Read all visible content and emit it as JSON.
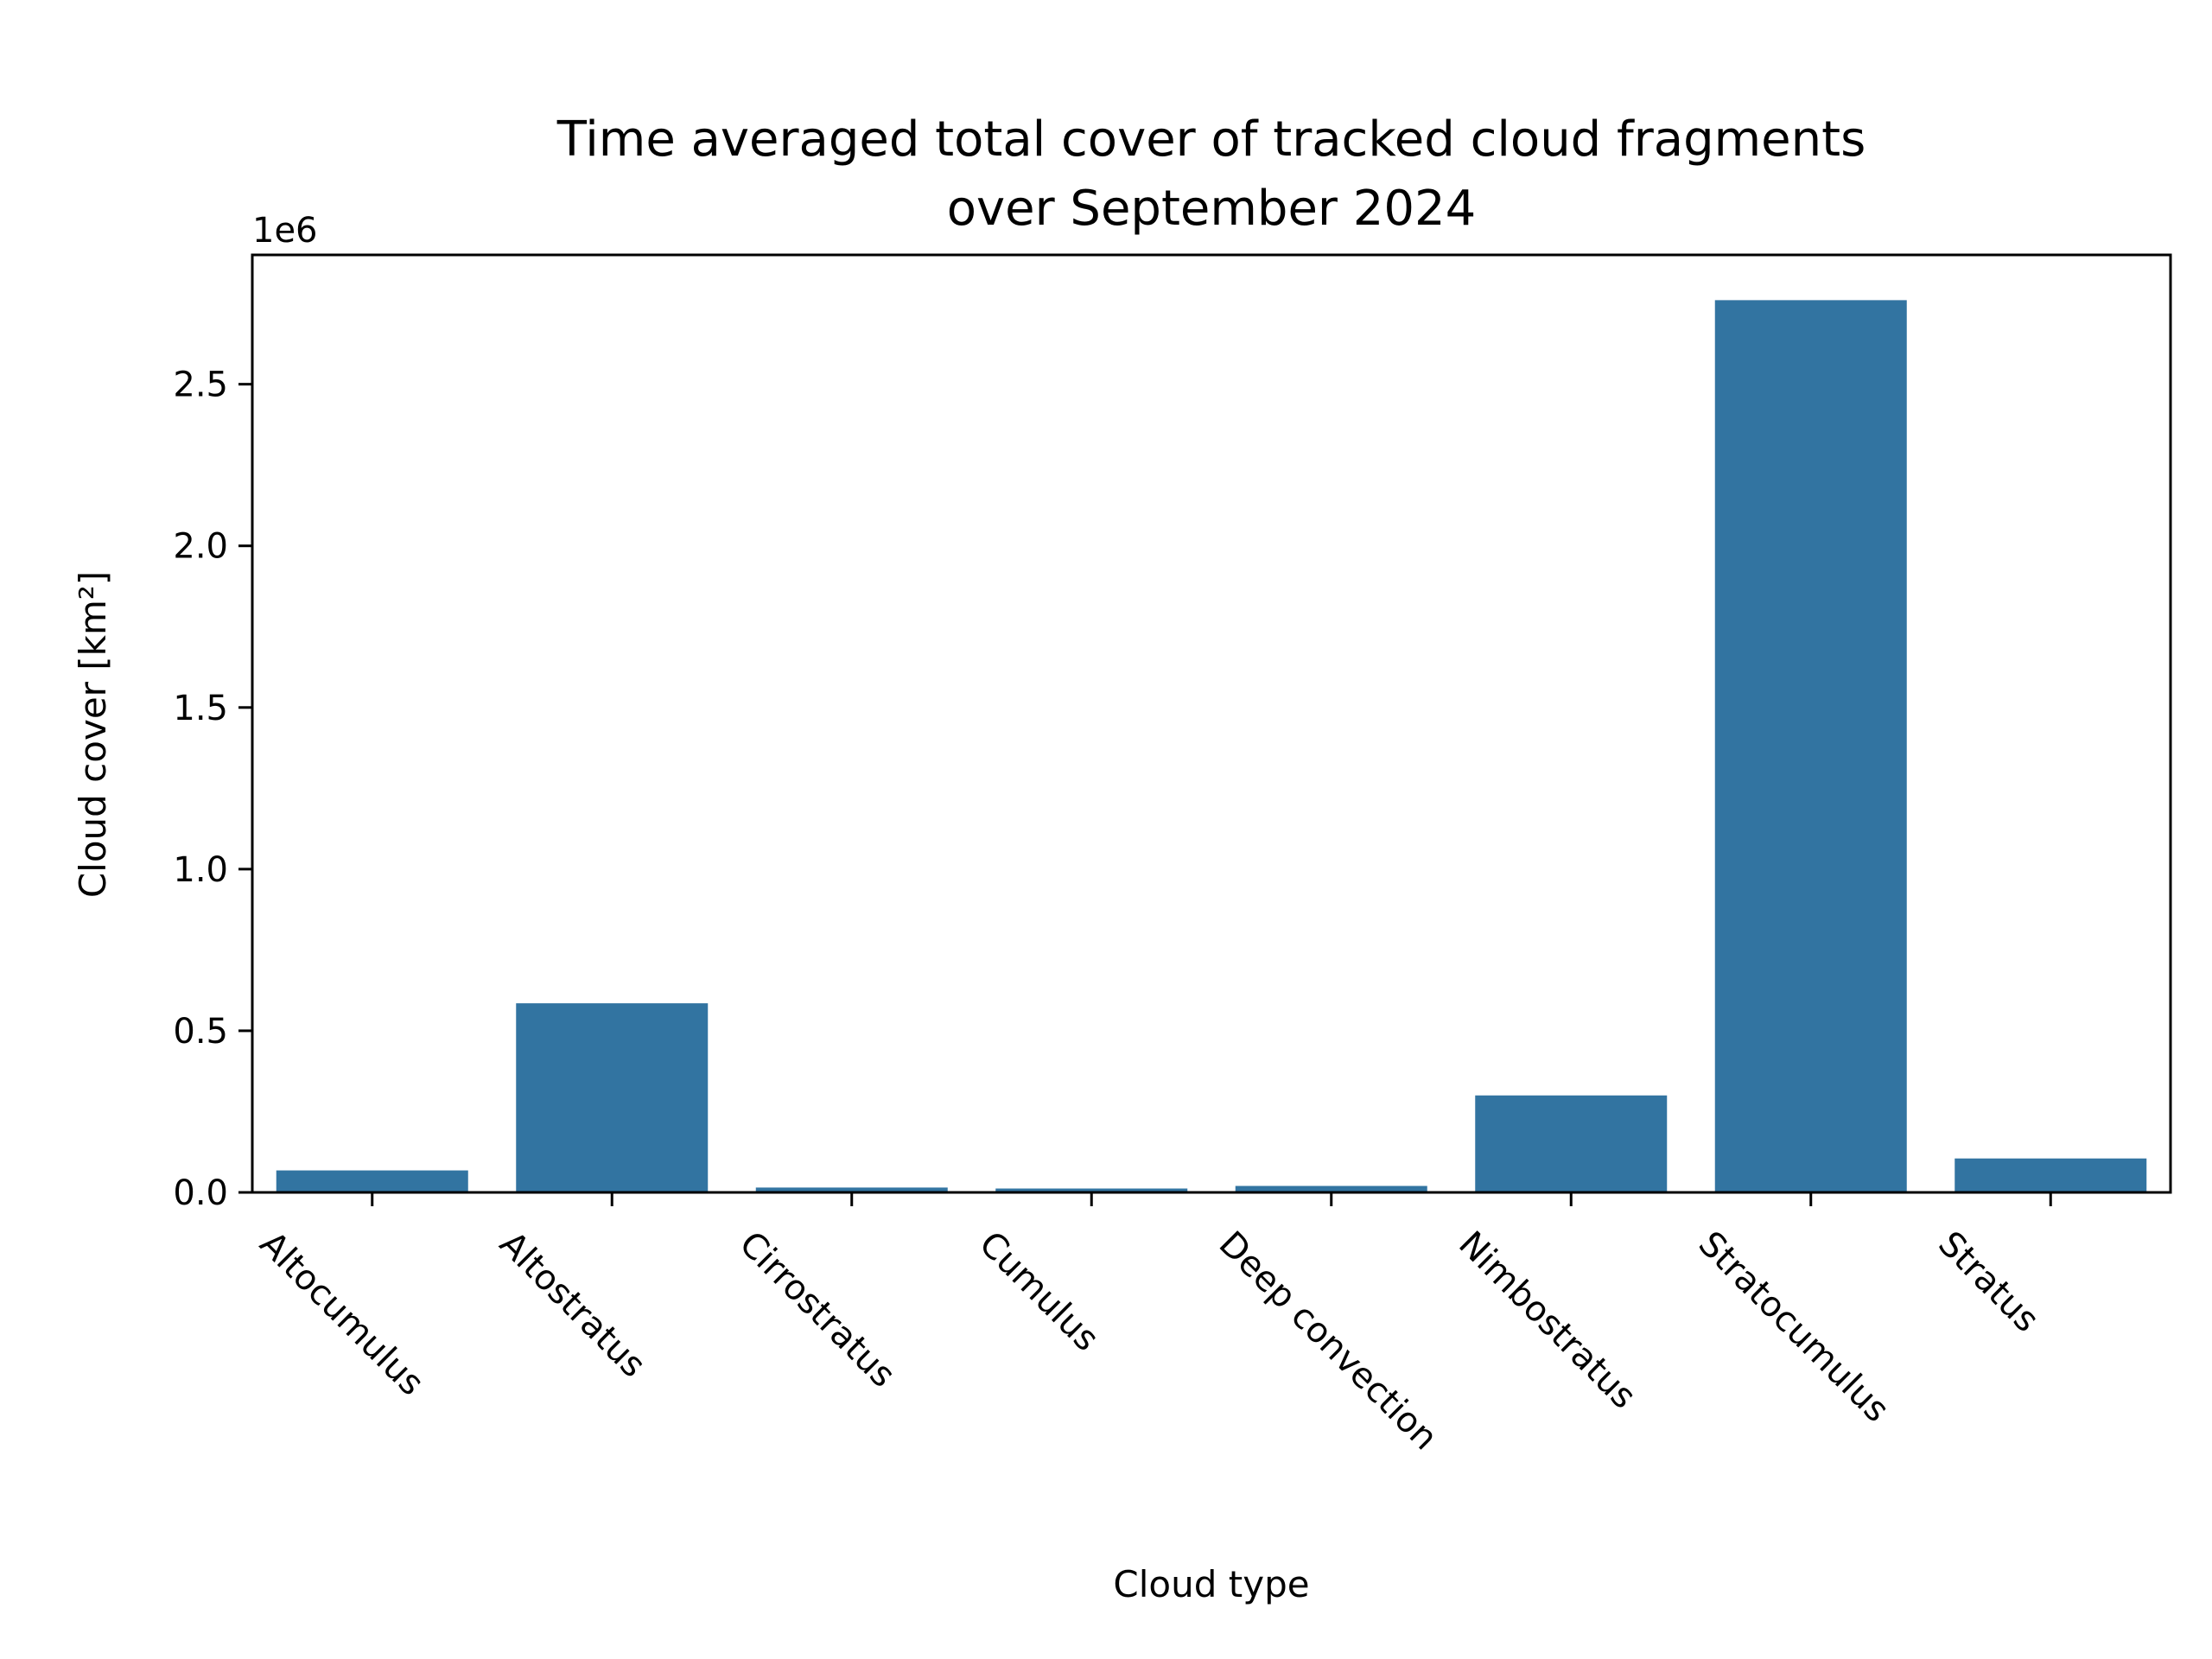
{
  "chart_data": {
    "type": "bar",
    "title_line1": "Time averaged total cover of tracked cloud fragments",
    "title_line2": "over September 2024",
    "xlabel": "Cloud type",
    "ylabel": "Cloud cover [km²]",
    "y_offset_label": "1e6",
    "categories": [
      "Altocumulus",
      "Altostratus",
      "Cirrostratus",
      "Cumulus",
      "Deep convection",
      "Nimbostratus",
      "Stratocumulus",
      "Stratus"
    ],
    "values": [
      68000,
      585000,
      15000,
      12000,
      20000,
      300000,
      2760000,
      105000
    ],
    "ylim": [
      0,
      2900000
    ],
    "yticks": [
      0,
      500000,
      1000000,
      1500000,
      2000000,
      2500000
    ],
    "ytick_labels": [
      "0.0",
      "0.5",
      "1.0",
      "1.5",
      "2.0",
      "2.5"
    ],
    "grid": false,
    "bar_color": "#3274a1"
  }
}
